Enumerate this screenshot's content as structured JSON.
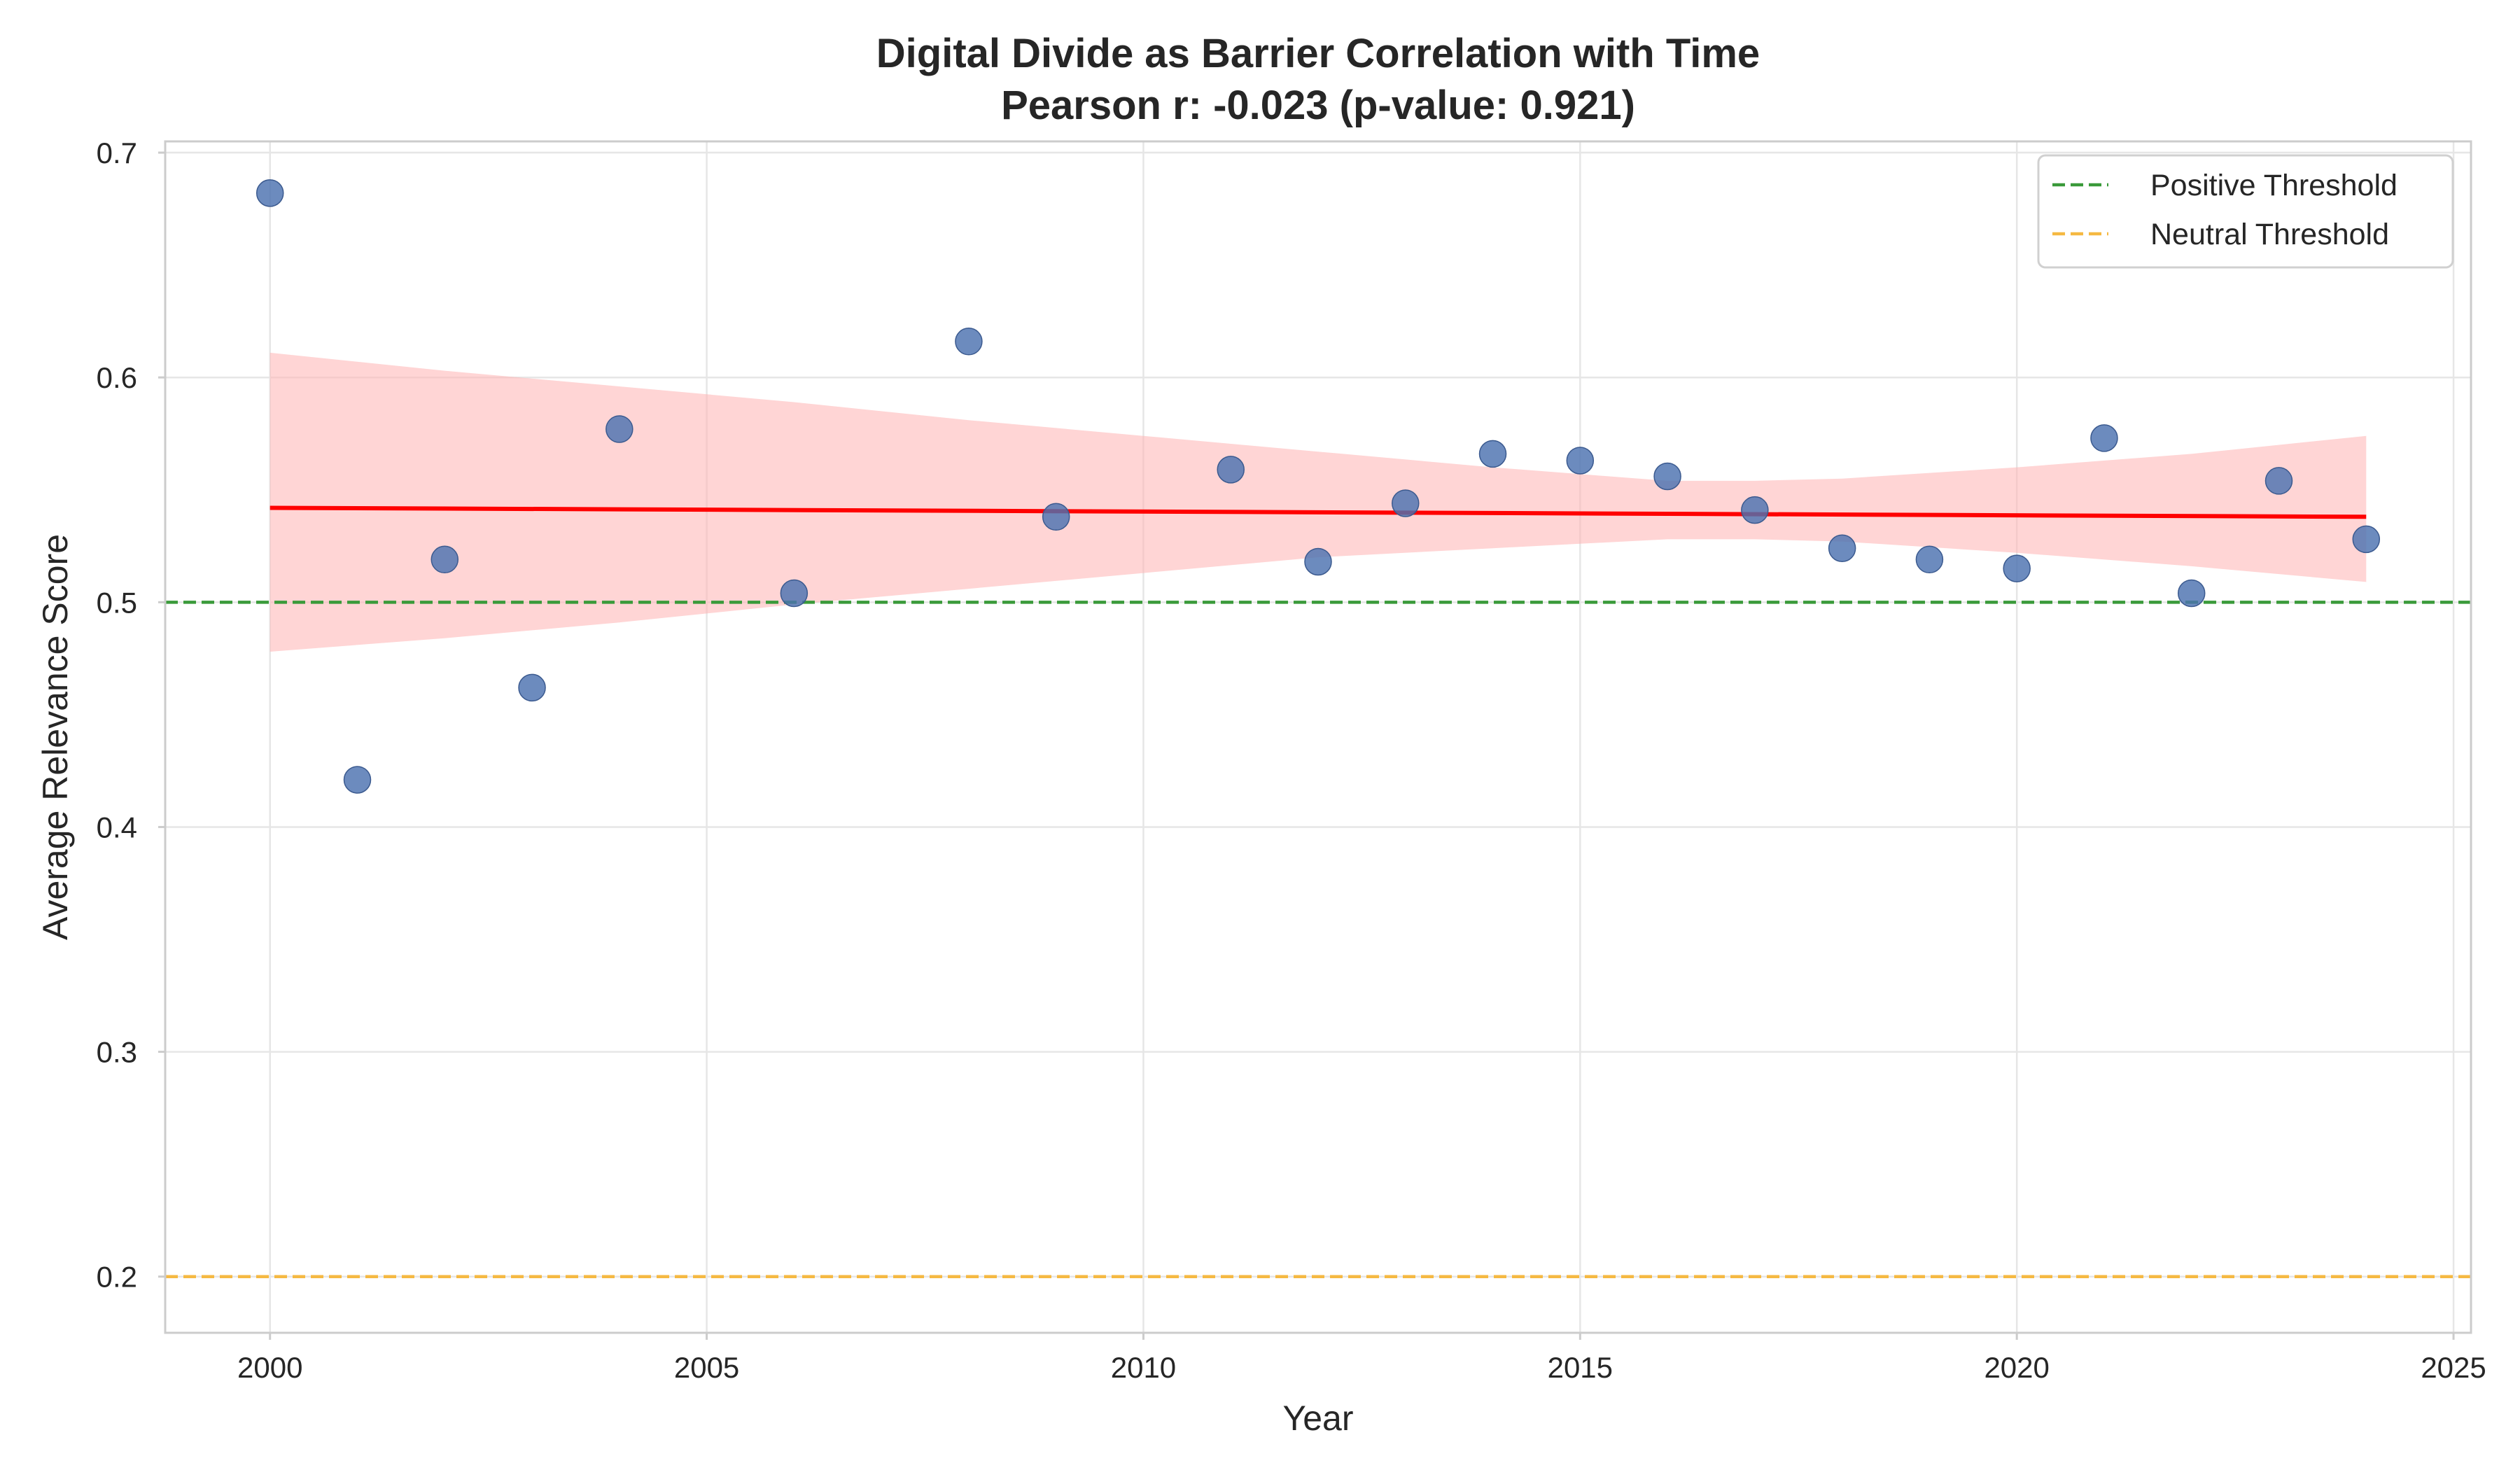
{
  "chart_data": {
    "type": "scatter",
    "title": "Digital Divide as Barrier Correlation with Time",
    "subtitle": "Pearson r: -0.023 (p-value: 0.921)",
    "xlabel": "Year",
    "ylabel": "Average Relevance Score",
    "xlim": [
      1998.8,
      2025.2
    ],
    "ylim": [
      0.175,
      0.705
    ],
    "xticks": [
      2000,
      2005,
      2010,
      2015,
      2020,
      2025
    ],
    "yticks": [
      0.2,
      0.3,
      0.4,
      0.5,
      0.6,
      0.7
    ],
    "grid": true,
    "legend_position": "top-right",
    "points": {
      "color": "#4c72b0",
      "x": [
        2000,
        2001,
        2002,
        2003,
        2004,
        2006,
        2008,
        2009,
        2011,
        2012,
        2013,
        2014,
        2015,
        2016,
        2017,
        2018,
        2019,
        2020,
        2021,
        2022,
        2023,
        2024
      ],
      "y": [
        0.682,
        0.421,
        0.519,
        0.462,
        0.577,
        0.504,
        0.616,
        0.538,
        0.559,
        0.518,
        0.544,
        0.566,
        0.563,
        0.556,
        0.541,
        0.524,
        0.519,
        0.515,
        0.573,
        0.504,
        0.554,
        0.528
      ]
    },
    "trend_line": {
      "color": "#ff0000",
      "x": [
        2000,
        2024
      ],
      "y": [
        0.542,
        0.538
      ]
    },
    "confidence_band": {
      "color": "#ffb3b3",
      "x": [
        2000,
        2002,
        2004,
        2006,
        2008,
        2010,
        2012,
        2014,
        2015,
        2016,
        2017,
        2018,
        2020,
        2022,
        2024
      ],
      "upper": [
        0.611,
        0.603,
        0.596,
        0.589,
        0.581,
        0.574,
        0.567,
        0.56,
        0.557,
        0.554,
        0.554,
        0.555,
        0.56,
        0.566,
        0.574
      ],
      "lower": [
        0.478,
        0.484,
        0.491,
        0.499,
        0.506,
        0.513,
        0.52,
        0.524,
        0.526,
        0.528,
        0.528,
        0.527,
        0.522,
        0.516,
        0.509
      ]
    },
    "thresholds": [
      {
        "name": "Positive Threshold",
        "y": 0.5,
        "color": "#3a9a3a"
      },
      {
        "name": "Neutral Threshold",
        "y": 0.2,
        "color": "#f5b942"
      }
    ]
  }
}
